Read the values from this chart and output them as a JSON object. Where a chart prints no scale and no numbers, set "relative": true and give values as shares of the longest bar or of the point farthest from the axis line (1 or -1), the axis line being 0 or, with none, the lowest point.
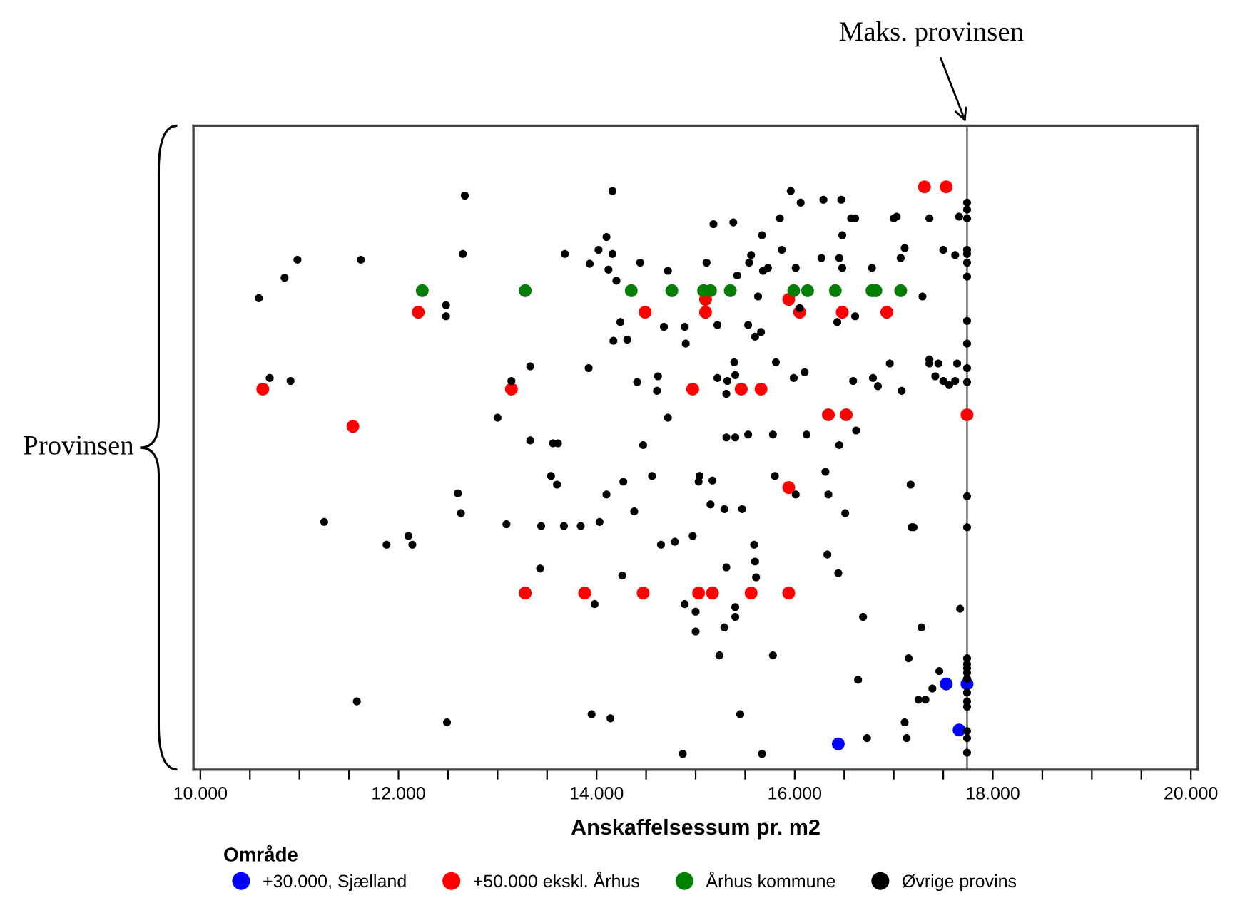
{
  "chart_data": {
    "type": "scatter",
    "relative": true,
    "xlabel": "Anskaffelsessum pr. m2",
    "ylabel": "Provinsen",
    "legend_title": "Område",
    "legend": "bottom",
    "marker": "circle",
    "grid": false,
    "xlim": [
      9930,
      20070
    ],
    "xticks": [
      {
        "value": 10000,
        "label": "10.000"
      },
      {
        "value": 10500,
        "label": null
      },
      {
        "value": 11000,
        "label": null
      },
      {
        "value": 11500,
        "label": null
      },
      {
        "value": 12000,
        "label": "12.000"
      },
      {
        "value": 12500,
        "label": null
      },
      {
        "value": 13000,
        "label": null
      },
      {
        "value": 13500,
        "label": null
      },
      {
        "value": 14000,
        "label": "14.000"
      },
      {
        "value": 14500,
        "label": null
      },
      {
        "value": 15000,
        "label": null
      },
      {
        "value": 15500,
        "label": null
      },
      {
        "value": 16000,
        "label": "16.000"
      },
      {
        "value": 16500,
        "label": null
      },
      {
        "value": 17000,
        "label": null
      },
      {
        "value": 17500,
        "label": null
      },
      {
        "value": 18000,
        "label": "18.000"
      },
      {
        "value": 18500,
        "label": null
      },
      {
        "value": 19000,
        "label": null
      },
      {
        "value": 19500,
        "label": null
      },
      {
        "value": 20000,
        "label": "20.000"
      }
    ],
    "ref_lines": [
      {
        "axis": "x",
        "value": 17740,
        "label": "Maks. provinsen",
        "color": "#808080"
      }
    ],
    "series": [
      {
        "name": "+30.000, Sjælland",
        "color": "#0000ff",
        "x": [
          16440,
          17530,
          17740,
          17660
        ],
        "values": [
          0.044,
          0.147,
          0.147,
          0.068
        ]
      },
      {
        "name": "+50.000 ekskl. Århus",
        "color": "#ff0000",
        "x": [
          17310,
          17530,
          12200,
          10630,
          13140,
          11540,
          15100,
          15940,
          14490,
          15100,
          16050,
          16480,
          16930,
          14970,
          15460,
          15660,
          16340,
          16520,
          17740,
          15940,
          13280,
          13880,
          14470,
          15030,
          15170,
          15560,
          15940
        ],
        "values": [
          1.0,
          1.0,
          0.785,
          0.653,
          0.653,
          0.589,
          0.807,
          0.807,
          0.785,
          0.785,
          0.785,
          0.785,
          0.785,
          0.653,
          0.653,
          0.653,
          0.609,
          0.609,
          0.609,
          0.484,
          0.303,
          0.303,
          0.303,
          0.303,
          0.303,
          0.303,
          0.303
        ]
      },
      {
        "name": "Århus kommune",
        "color": "#008000",
        "x": [
          12240,
          13280,
          14350,
          14760,
          15080,
          15150,
          15350,
          15990,
          16130,
          16410,
          16780,
          16820,
          17070
        ],
        "values": [
          0.822,
          0.822,
          0.822,
          0.822,
          0.822,
          0.822,
          0.822,
          0.822,
          0.822,
          0.822,
          0.822,
          0.822,
          0.822
        ]
      },
      {
        "name": "Øvrige provins",
        "color": "#000000",
        "x": [
          12670,
          10980,
          11620,
          10850,
          10590,
          12650,
          13680,
          14020,
          13930,
          12480,
          12480,
          10700,
          10910,
          13330,
          13920,
          13140,
          13000,
          13330,
          13560,
          13610,
          14160,
          15960,
          16060,
          16290,
          16470,
          15180,
          15380,
          15850,
          16570,
          16610,
          17000,
          17030,
          17360,
          17660,
          17740,
          17740,
          17740,
          14100,
          15670,
          16480,
          14160,
          14120,
          14200,
          14440,
          14720,
          15110,
          15420,
          15560,
          15540,
          15680,
          15730,
          15870,
          16010,
          16270,
          16450,
          16480,
          16780,
          17110,
          17070,
          17500,
          17620,
          17740,
          17740,
          17740,
          17740,
          15630,
          17290,
          16050,
          16610,
          16430,
          14240,
          14680,
          14890,
          15220,
          15530,
          15660,
          15600,
          14170,
          14310,
          14900,
          17740,
          17740,
          14410,
          14620,
          14610,
          15220,
          15320,
          15390,
          15400,
          15310,
          15810,
          15990,
          16100,
          16590,
          16790,
          16840,
          16960,
          17080,
          17360,
          17360,
          17450,
          17420,
          17500,
          17560,
          17620,
          17640,
          17740,
          17740,
          14720,
          16620,
          15310,
          15400,
          15530,
          15780,
          16120,
          16450,
          14470,
          13540,
          13600,
          12600,
          12630,
          11250,
          13090,
          13440,
          13670,
          13840,
          14030,
          11880,
          12100,
          12140,
          13430,
          13980,
          11580,
          12490,
          13950,
          14270,
          14560,
          15030,
          15040,
          15170,
          15800,
          16310,
          14100,
          14380,
          15150,
          15290,
          15470,
          16010,
          16340,
          16510,
          17170,
          17740,
          14650,
          14790,
          14970,
          15590,
          15600,
          15310,
          15610,
          16330,
          16440,
          17180,
          17200,
          17740,
          14260,
          14890,
          15000,
          15400,
          15400,
          15000,
          15290,
          15240,
          15780,
          16690,
          17280,
          17670,
          17150,
          16640,
          17460,
          17390,
          17250,
          17320,
          17740,
          17740,
          17740,
          17740,
          17740,
          17740,
          17740,
          17740,
          14140,
          15450,
          17110,
          17130,
          16730,
          17740,
          17740,
          17740,
          14870,
          15670
        ],
        "values": [
          0.985,
          0.875,
          0.875,
          0.844,
          0.809,
          0.885,
          0.885,
          0.892,
          0.868,
          0.797,
          0.778,
          0.672,
          0.667,
          0.692,
          0.689,
          0.667,
          0.604,
          0.565,
          0.56,
          0.56,
          0.993,
          0.993,
          0.973,
          0.978,
          0.978,
          0.936,
          0.939,
          0.946,
          0.946,
          0.946,
          0.946,
          0.949,
          0.946,
          0.949,
          0.973,
          0.961,
          0.946,
          0.914,
          0.917,
          0.917,
          0.885,
          0.858,
          0.839,
          0.87,
          0.856,
          0.87,
          0.848,
          0.883,
          0.87,
          0.856,
          0.861,
          0.892,
          0.861,
          0.878,
          0.878,
          0.861,
          0.861,
          0.895,
          0.878,
          0.892,
          0.883,
          0.892,
          0.885,
          0.87,
          0.846,
          0.812,
          0.812,
          0.792,
          0.778,
          0.768,
          0.768,
          0.76,
          0.76,
          0.763,
          0.763,
          0.751,
          0.743,
          0.736,
          0.738,
          0.731,
          0.77,
          0.731,
          0.665,
          0.675,
          0.65,
          0.672,
          0.667,
          0.699,
          0.677,
          0.645,
          0.699,
          0.672,
          0.682,
          0.667,
          0.672,
          0.658,
          0.697,
          0.65,
          0.704,
          0.697,
          0.697,
          0.675,
          0.667,
          0.66,
          0.667,
          0.697,
          0.689,
          0.665,
          0.604,
          0.582,
          0.57,
          0.57,
          0.575,
          0.575,
          0.575,
          0.557,
          0.557,
          0.504,
          0.489,
          0.474,
          0.44,
          0.425,
          0.421,
          0.418,
          0.418,
          0.418,
          0.425,
          0.386,
          0.401,
          0.386,
          0.345,
          0.284,
          0.117,
          0.081,
          0.095,
          0.494,
          0.504,
          0.494,
          0.504,
          0.496,
          0.504,
          0.511,
          0.472,
          0.443,
          0.455,
          0.447,
          0.447,
          0.472,
          0.472,
          0.44,
          0.489,
          0.469,
          0.386,
          0.391,
          0.401,
          0.386,
          0.357,
          0.347,
          0.33,
          0.369,
          0.337,
          0.416,
          0.416,
          0.416,
          0.333,
          0.284,
          0.271,
          0.279,
          0.262,
          0.237,
          0.244,
          0.196,
          0.196,
          0.262,
          0.244,
          0.276,
          0.191,
          0.154,
          0.169,
          0.139,
          0.12,
          0.12,
          0.191,
          0.181,
          0.174,
          0.166,
          0.156,
          0.132,
          0.117,
          0.108,
          0.088,
          0.095,
          0.081,
          0.054,
          0.054,
          0.066,
          0.054,
          0.029,
          0.027,
          0.027
        ]
      }
    ]
  }
}
